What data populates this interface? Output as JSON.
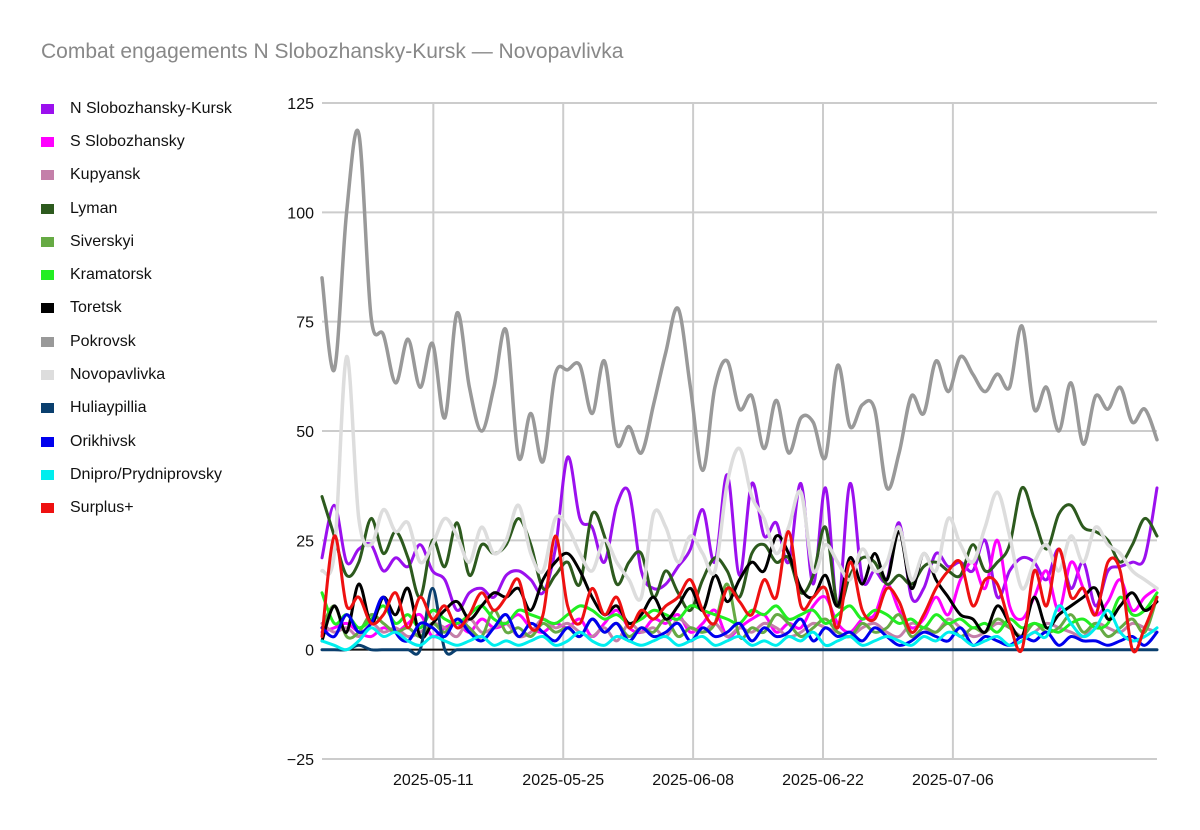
{
  "chart_data": {
    "type": "line",
    "title": "Combat engagements N Slobozhansky-Kursk — Novopavlivka",
    "xlabel": "",
    "ylabel": "",
    "ylim": [
      -25,
      125
    ],
    "yticks": [
      -25,
      0,
      25,
      50,
      75,
      100,
      125
    ],
    "x_start": "2025-04-29",
    "x_end": "2025-07-28",
    "xticks": [
      "2025-05-11",
      "2025-05-25",
      "2025-06-08",
      "2025-06-22",
      "2025-07-06"
    ],
    "grid": true,
    "legend_position": "left",
    "series": [
      {
        "name": "N Slobozhansky-Kursk",
        "color": "#9b10ee",
        "values": [
          21,
          33,
          20,
          23,
          24,
          18,
          21,
          19,
          24,
          18,
          16,
          9,
          13,
          14,
          12,
          17,
          18,
          16,
          13,
          23,
          44,
          30,
          28,
          20,
          33,
          36,
          18,
          14,
          15,
          19,
          23,
          32,
          20,
          40,
          17,
          38,
          26,
          29,
          20,
          38,
          15,
          37,
          10,
          38,
          16,
          18,
          16,
          29,
          12,
          14,
          22,
          19,
          20,
          18,
          25,
          12,
          18,
          21,
          20,
          16,
          23,
          14,
          20,
          10,
          18,
          19,
          20,
          21,
          37
        ]
      },
      {
        "name": "S Slobozhansky",
        "color": "#ff00ff",
        "values": [
          4,
          5,
          6,
          4,
          3,
          5,
          4,
          6,
          8,
          3,
          5,
          6,
          4,
          7,
          5,
          6,
          8,
          5,
          4,
          6,
          5,
          7,
          3,
          6,
          9,
          5,
          4,
          7,
          6,
          8,
          4,
          6,
          9,
          3,
          5,
          7,
          8,
          4,
          6,
          5,
          10,
          12,
          6,
          4,
          7,
          8,
          15,
          9,
          5,
          7,
          12,
          8,
          16,
          20,
          14,
          25,
          10,
          7,
          12,
          18,
          9,
          20,
          14,
          8,
          11,
          16,
          9,
          12,
          14
        ]
      },
      {
        "name": "Kupyansk",
        "color": "#c47fa9",
        "values": [
          6,
          4,
          5,
          3,
          6,
          4,
          5,
          3,
          4,
          6,
          5,
          3,
          7,
          4,
          5,
          6,
          3,
          4,
          7,
          5,
          6,
          4,
          3,
          5,
          2,
          6,
          4,
          5,
          3,
          7,
          5,
          4,
          6,
          3,
          5,
          4,
          6,
          5,
          3,
          4,
          6,
          5,
          4,
          3,
          5,
          6,
          4,
          3,
          6,
          5,
          4,
          7,
          5,
          3,
          4,
          6,
          5,
          3,
          4,
          6,
          5,
          4,
          3,
          6,
          5,
          4,
          6,
          5,
          4
        ]
      },
      {
        "name": "Lyman",
        "color": "#2d5a1e",
        "values": [
          35,
          26,
          17,
          20,
          30,
          22,
          27,
          21,
          12,
          25,
          19,
          29,
          17,
          24,
          22,
          24,
          30,
          24,
          14,
          17,
          20,
          15,
          31,
          26,
          15,
          20,
          22,
          12,
          18,
          13,
          9,
          16,
          21,
          18,
          12,
          22,
          24,
          20,
          21,
          13,
          17,
          28,
          10,
          17,
          21,
          20,
          15,
          17,
          15,
          19,
          20,
          18,
          17,
          24,
          18,
          20,
          24,
          37,
          30,
          23,
          31,
          33,
          28,
          27,
          25,
          20,
          24,
          30,
          26
        ]
      },
      {
        "name": "Siverskyi",
        "color": "#66aa44",
        "values": [
          5,
          10,
          3,
          4,
          8,
          6,
          4,
          5,
          3,
          6,
          4,
          7,
          5,
          3,
          9,
          4,
          5,
          3,
          6,
          4,
          5,
          3,
          7,
          4,
          6,
          3,
          5,
          4,
          7,
          3,
          5,
          4,
          6,
          15,
          3,
          5,
          4,
          8,
          6,
          3,
          5,
          7,
          4,
          3,
          6,
          4,
          5,
          8,
          3,
          5,
          4,
          6,
          3,
          5,
          4,
          7,
          5,
          3,
          6,
          4,
          5,
          8,
          4,
          6,
          3,
          5,
          7,
          4,
          12
        ]
      },
      {
        "name": "Kramatorsk",
        "color": "#22ee22",
        "values": [
          13,
          6,
          8,
          5,
          7,
          10,
          6,
          8,
          5,
          9,
          7,
          6,
          8,
          10,
          7,
          6,
          9,
          8,
          7,
          6,
          8,
          10,
          9,
          7,
          8,
          6,
          7,
          9,
          8,
          7,
          10,
          9,
          8,
          7,
          6,
          9,
          8,
          10,
          7,
          8,
          9,
          6,
          8,
          10,
          7,
          9,
          8,
          6,
          7,
          5,
          8,
          6,
          7,
          5,
          6,
          4,
          7,
          5,
          6,
          5,
          4,
          6,
          7,
          5,
          6,
          12,
          8,
          9,
          13
        ]
      },
      {
        "name": "Toretsk",
        "color": "#000000",
        "values": [
          2,
          10,
          4,
          15,
          6,
          12,
          8,
          14,
          3,
          6,
          9,
          11,
          7,
          10,
          13,
          12,
          14,
          9,
          16,
          20,
          22,
          18,
          12,
          8,
          10,
          6,
          8,
          12,
          7,
          10,
          14,
          9,
          17,
          11,
          16,
          20,
          18,
          26,
          22,
          14,
          12,
          17,
          10,
          21,
          15,
          22,
          16,
          27,
          14,
          22,
          16,
          12,
          8,
          7,
          4,
          10,
          6,
          3,
          12,
          5,
          8,
          10,
          12,
          14,
          7,
          10,
          13,
          9,
          11
        ]
      },
      {
        "name": "Pokrovsk",
        "color": "#999999",
        "values": [
          85,
          64,
          100,
          118,
          76,
          72,
          61,
          71,
          60,
          70,
          53,
          77,
          60,
          50,
          60,
          73,
          44,
          54,
          43,
          63,
          64,
          65,
          54,
          66,
          47,
          51,
          45,
          56,
          68,
          78,
          60,
          41,
          60,
          66,
          55,
          58,
          46,
          57,
          45,
          53,
          52,
          44,
          65,
          51,
          56,
          55,
          37,
          45,
          58,
          54,
          66,
          59,
          67,
          63,
          59,
          63,
          60,
          74,
          55,
          60,
          50,
          61,
          47,
          58,
          55,
          60,
          52,
          55,
          48
        ]
      },
      {
        "name": "Novopavlivka",
        "color": "#dddddd",
        "values": [
          18,
          22,
          67,
          30,
          24,
          32,
          27,
          29,
          20,
          24,
          30,
          26,
          20,
          28,
          22,
          25,
          33,
          22,
          18,
          30,
          28,
          22,
          18,
          25,
          20,
          16,
          12,
          31,
          28,
          20,
          26,
          22,
          18,
          38,
          46,
          35,
          30,
          22,
          28,
          36,
          18,
          24,
          20,
          16,
          23,
          18,
          20,
          28,
          16,
          22,
          18,
          30,
          24,
          20,
          28,
          36,
          26,
          14,
          20,
          24,
          18,
          26,
          20,
          28,
          24,
          22,
          18,
          16,
          14
        ]
      },
      {
        "name": "Huliaypillia",
        "color": "#0a3f6e",
        "values": [
          0,
          0,
          0,
          1,
          0,
          0,
          0,
          0,
          0,
          14,
          0,
          0,
          0,
          0,
          0,
          0,
          0,
          0,
          0,
          0,
          0,
          0,
          0,
          0,
          0,
          0,
          0,
          0,
          0,
          0,
          0,
          0,
          0,
          0,
          0,
          0,
          0,
          0,
          0,
          0,
          0,
          0,
          0,
          0,
          0,
          0,
          0,
          0,
          0,
          0,
          0,
          0,
          0,
          0,
          0,
          0,
          0,
          0,
          0,
          0,
          0,
          0,
          0,
          0,
          0,
          0,
          0,
          0,
          0
        ]
      },
      {
        "name": "Orikhivsk",
        "color": "#0000ee",
        "values": [
          5,
          3,
          8,
          4,
          6,
          12,
          4,
          2,
          6,
          5,
          3,
          7,
          4,
          2,
          5,
          8,
          3,
          6,
          4,
          2,
          5,
          3,
          7,
          4,
          6,
          2,
          5,
          3,
          4,
          6,
          2,
          5,
          3,
          4,
          6,
          2,
          5,
          3,
          4,
          7,
          2,
          5,
          3,
          4,
          2,
          5,
          3,
          1,
          2,
          4,
          3,
          2,
          5,
          1,
          3,
          2,
          1,
          3,
          2,
          4,
          1,
          3,
          2,
          2,
          1,
          2,
          3,
          1,
          4
        ]
      },
      {
        "name": "Dnipro/Prydniprovsky",
        "color": "#00eeee",
        "values": [
          2,
          1,
          0,
          2,
          5,
          3,
          4,
          2,
          1,
          3,
          2,
          1,
          2,
          3,
          1,
          2,
          1,
          2,
          3,
          1,
          2,
          4,
          2,
          1,
          3,
          2,
          1,
          2,
          3,
          1,
          2,
          3,
          1,
          2,
          3,
          1,
          2,
          1,
          3,
          2,
          4,
          1,
          2,
          3,
          1,
          2,
          3,
          2,
          1,
          3,
          2,
          4,
          3,
          1,
          2,
          3,
          1,
          2,
          4,
          3,
          10,
          6,
          3,
          5,
          9,
          4,
          2,
          3,
          5
        ]
      },
      {
        "name": "Surplus+",
        "color": "#ee1111",
        "values": [
          3,
          26,
          10,
          12,
          6,
          8,
          13,
          5,
          12,
          7,
          10,
          5,
          8,
          13,
          9,
          12,
          16,
          5,
          8,
          26,
          10,
          6,
          14,
          8,
          12,
          5,
          9,
          7,
          10,
          12,
          16,
          9,
          6,
          14,
          11,
          8,
          16,
          12,
          27,
          10,
          12,
          14,
          5,
          20,
          9,
          7,
          14,
          11,
          4,
          8,
          14,
          18,
          20,
          10,
          16,
          15,
          6,
          0,
          18,
          10,
          23,
          12,
          14,
          8,
          20,
          18,
          0,
          5,
          12
        ]
      }
    ]
  }
}
